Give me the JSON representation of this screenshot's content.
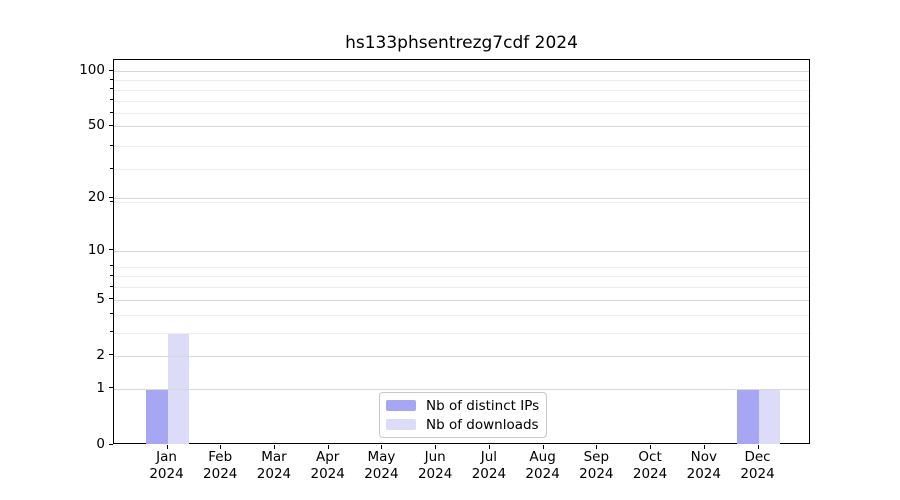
{
  "chart_data": {
    "type": "bar",
    "title": "hs133phsentrezg7cdf 2024",
    "x": {
      "months": [
        "Jan",
        "Feb",
        "Mar",
        "Apr",
        "May",
        "Jun",
        "Jul",
        "Aug",
        "Sep",
        "Oct",
        "Nov",
        "Dec"
      ],
      "year": "2024"
    },
    "series": [
      {
        "name": "Nb of distinct IPs",
        "color": "#a6a6f2",
        "values": [
          1,
          0,
          0,
          0,
          0,
          0,
          0,
          0,
          0,
          0,
          0,
          1
        ]
      },
      {
        "name": "Nb of downloads",
        "color": "#dcdcf8",
        "values": [
          3,
          0,
          0,
          0,
          0,
          0,
          0,
          0,
          0,
          0,
          0,
          1
        ]
      }
    ],
    "y_axis": {
      "scale": "log10(1+value)",
      "ticks": [
        0,
        1,
        2,
        5,
        10,
        20,
        50,
        100
      ],
      "minor_gridlines_at_values": [
        3,
        4,
        6,
        7,
        8,
        19,
        29,
        39,
        59,
        69,
        79,
        89
      ],
      "max_value": 115
    },
    "legend": {
      "position": "lower center"
    },
    "grid": true,
    "colors": {
      "bar_distinct_ips": "#a6a6f2",
      "bar_downloads": "#dcdcf8",
      "major_gridline": "#d8d8d8",
      "minor_gridline": "#eeeeee",
      "axis": "#000000",
      "legend_border": "#c9c9c9",
      "background": "#ffffff",
      "text": "#000000"
    }
  }
}
